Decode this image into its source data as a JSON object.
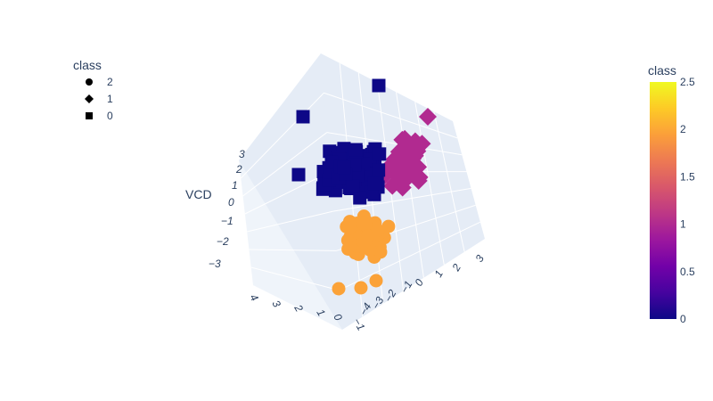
{
  "chart_data": {
    "type": "scatter3d",
    "title": "",
    "axes": {
      "z": {
        "label": "VCD",
        "ticks": [
          "3",
          "2",
          "1",
          "0",
          "−1",
          "−2",
          "−3"
        ]
      },
      "x": {
        "label": "",
        "ticks": [
          "4",
          "3",
          "2",
          "1",
          "0",
          "−1"
        ]
      },
      "y": {
        "label": "",
        "ticks": [
          "−4",
          "−3",
          "−2",
          "−1",
          "0",
          "1",
          "2",
          "3"
        ]
      }
    },
    "legend": {
      "title": "class",
      "placement": "top-left",
      "items": [
        {
          "label": "2",
          "symbol": "circle"
        },
        {
          "label": "1",
          "symbol": "diamond"
        },
        {
          "label": "0",
          "symbol": "square"
        }
      ]
    },
    "colorbar": {
      "title": "class",
      "placement": "right",
      "range": [
        0,
        2.5
      ],
      "ticks": [
        "2.5",
        "2",
        "1.5",
        "1",
        "0.5",
        "0"
      ],
      "colors": [
        "#0d0887",
        "#46039f",
        "#7201a8",
        "#9c179e",
        "#bd3786",
        "#d8576b",
        "#ed7953",
        "#fb9f3a",
        "#fdca26",
        "#f0f921"
      ]
    },
    "series": [
      {
        "name": "2",
        "symbol": "circle",
        "color": "#fba238",
        "points": 90
      },
      {
        "name": "1",
        "symbol": "diamond",
        "color": "#b12a90",
        "points": 80
      },
      {
        "name": "0",
        "symbol": "square",
        "color": "#0d0887",
        "points": 90
      }
    ]
  }
}
